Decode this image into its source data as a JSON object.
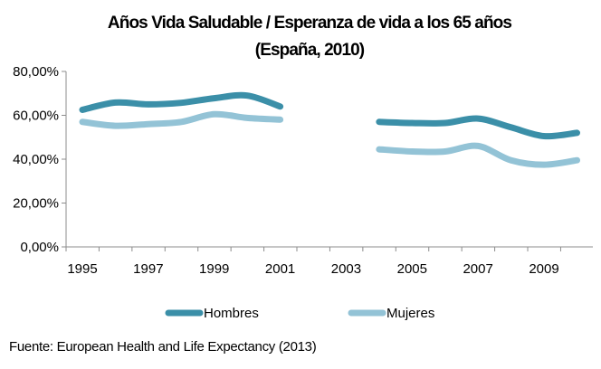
{
  "chart_data": {
    "type": "line",
    "title_line1": "Años Vida Saludable /  Esperanza de vida a los 65 años",
    "title_line2": "(España, 2010)",
    "xlabel": "",
    "ylabel": "",
    "x": [
      1995,
      1996,
      1997,
      1998,
      1999,
      2000,
      2001,
      2002,
      2003,
      2004,
      2005,
      2006,
      2007,
      2008,
      2009,
      2010
    ],
    "xlim": [
      1995,
      2010
    ],
    "x_tick_labels": [
      "1995",
      "1997",
      "1999",
      "2001",
      "2003",
      "2005",
      "2007",
      "2009"
    ],
    "y_tick_labels": [
      "0,00%",
      "20,00%",
      "40,00%",
      "60,00%",
      "80,00%"
    ],
    "ylim": [
      0,
      80
    ],
    "grid": false,
    "legend_position": "bottom",
    "series": [
      {
        "name": "Hombres",
        "color": "#3b8fa8",
        "values": [
          62.5,
          65.8,
          65,
          65.7,
          67.8,
          69,
          64,
          null,
          null,
          57,
          56.5,
          56.5,
          58.5,
          54.5,
          50.5,
          52
        ]
      },
      {
        "name": "Mujeres",
        "color": "#93c3d6",
        "values": [
          57,
          55.2,
          56,
          57,
          60.5,
          58.8,
          58,
          null,
          null,
          44.5,
          43.5,
          43.5,
          46,
          39.5,
          37.5,
          39.5
        ]
      }
    ]
  },
  "source_text": "Fuente: European Health and Life Expectancy (2013)"
}
